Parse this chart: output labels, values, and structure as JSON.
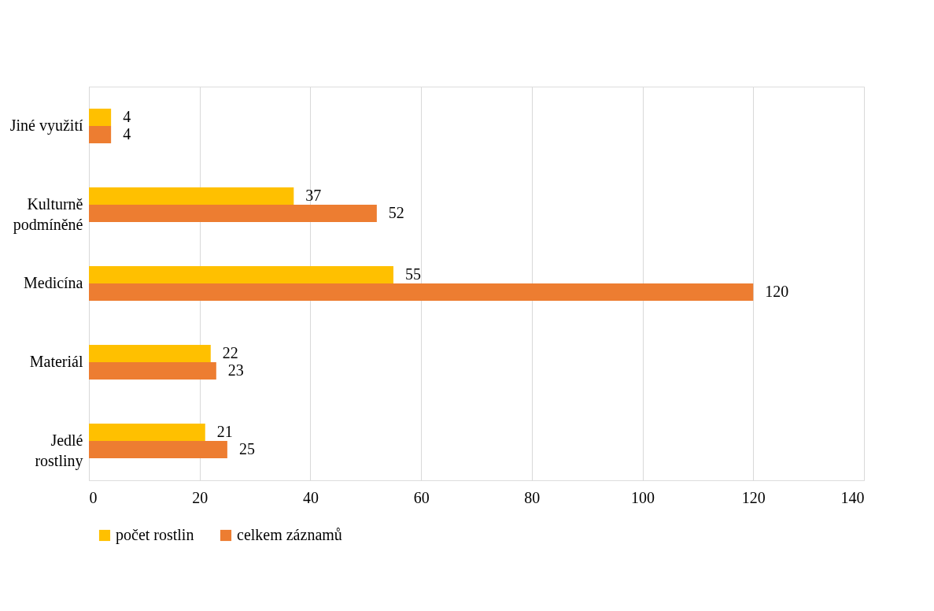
{
  "chart_data": {
    "type": "bar",
    "orientation": "horizontal",
    "categories": [
      "Jiné využití",
      "Kulturně podmíněné",
      "Medicína",
      "Materiál",
      "Jedlé rostliny"
    ],
    "series": [
      {
        "name": "počet rostlin",
        "color": "#ffc000",
        "values": [
          4,
          37,
          55,
          22,
          21
        ]
      },
      {
        "name": "celkem záznamů",
        "color": "#ed7d31",
        "values": [
          4,
          52,
          120,
          23,
          25
        ]
      }
    ],
    "xlim": [
      0,
      140
    ],
    "xticks": [
      0,
      20,
      40,
      60,
      80,
      100,
      120,
      140
    ],
    "grid": "x",
    "legend": "bottom",
    "data_labels": true
  }
}
